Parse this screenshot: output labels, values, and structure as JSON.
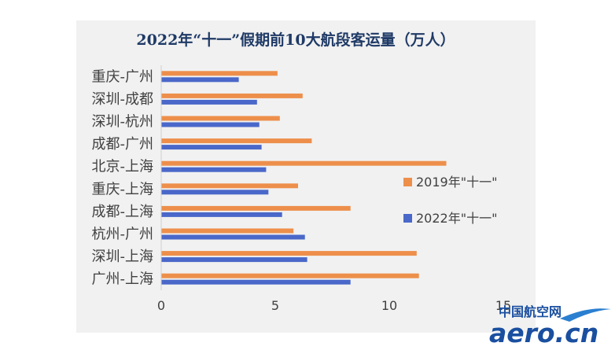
{
  "chart_data": {
    "type": "bar",
    "orientation": "horizontal",
    "title": "2022年“十一”假期前10大航段客运量（万人）",
    "categories": [
      "重庆-广州",
      "深圳-成都",
      "深圳-杭州",
      "成都-广州",
      "北京-上海",
      "重庆-上海",
      "成都-上海",
      "杭州-广州",
      "深圳-上海",
      "广州-上海"
    ],
    "series": [
      {
        "name": "2019年\"十一\"",
        "color": "#ed8f4b",
        "values": [
          5.1,
          6.2,
          5.2,
          6.6,
          12.5,
          6.0,
          8.3,
          5.8,
          11.2,
          11.3
        ]
      },
      {
        "name": "2022年\"十一\"",
        "color": "#4a68c9",
        "values": [
          3.4,
          4.2,
          4.3,
          4.4,
          4.6,
          4.7,
          5.3,
          6.3,
          6.4,
          8.3
        ]
      }
    ],
    "xlim": [
      0,
      15
    ],
    "xticks": [
      0,
      5,
      10,
      15
    ],
    "legend_position": "right",
    "grid": false
  },
  "watermark": {
    "cn": "中国航空网",
    "en": "aero.cn",
    "color": "#1a4fa0"
  }
}
